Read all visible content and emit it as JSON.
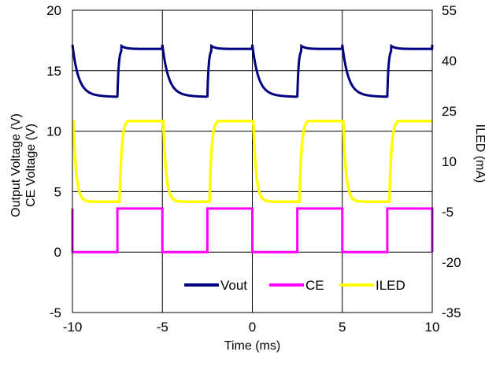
{
  "chart_data": {
    "type": "line",
    "xlabel": "Time (ms)",
    "ylabel_left": [
      "Output Voltage (V)",
      "CE Voltage (V)"
    ],
    "ylabel_right": "ILED (mA)",
    "xlim": [
      -10,
      10
    ],
    "ylim_left": [
      -5,
      20
    ],
    "ylim_right": [
      -35,
      55
    ],
    "x_ticks": [
      "-10",
      "-5",
      "0",
      "5",
      "10"
    ],
    "y_ticks_left": [
      "-5",
      "0",
      "5",
      "10",
      "15",
      "20"
    ],
    "y_ticks_right": [
      "-35",
      "-20",
      "-5",
      "10",
      "25",
      "40",
      "55"
    ],
    "grid": true,
    "legend_position": "bottom-right",
    "period_ms": 5,
    "series": [
      {
        "name": "Vout",
        "axis": "left",
        "color": "#000080",
        "high": 16.8,
        "low": 12.8,
        "pattern": "rise-sharp-at-high-phase, slow-decay-during-low-phase"
      },
      {
        "name": "CE",
        "axis": "left",
        "color": "#ff00ff",
        "high": 3.6,
        "low": 0,
        "first_rise_ms": -7.5,
        "duty": 0.5
      },
      {
        "name": "ILED",
        "axis": "right",
        "color": "#ffff00",
        "high": 22,
        "low": -2,
        "unit": "mA"
      }
    ]
  }
}
